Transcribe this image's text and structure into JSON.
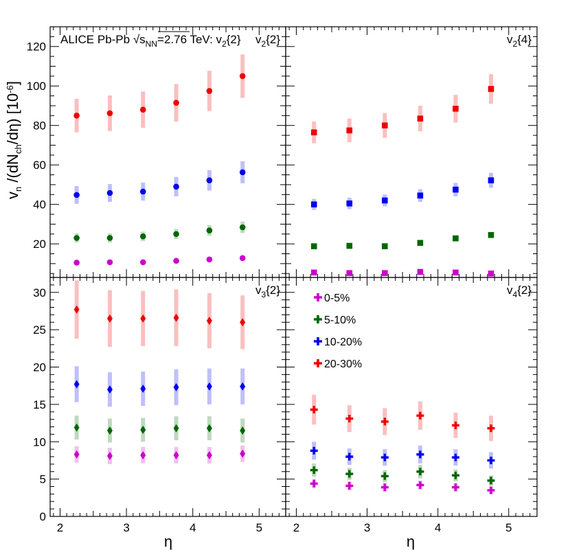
{
  "chart_data": {
    "type": "scatter",
    "title_prefix": "ALICE Pb-Pb",
    "title_sqrt": "s",
    "title_sub": "NN",
    "title_suffix": "=2.76 TeV: v",
    "title_v_sub": "2",
    "title_v_tail": "{2}",
    "ylabel_parts": {
      "v": "v",
      "v_sub": "n",
      "mid": " /(dN",
      "ch_sub": "ch",
      "tail": "/dη) [10",
      "exp": "-6",
      "close": "]"
    },
    "xlabel": "η",
    "x": [
      2.25,
      2.75,
      3.25,
      3.75,
      4.25,
      4.75
    ],
    "x_ticks": [
      "2",
      "3",
      "4",
      "5"
    ],
    "xlim": [
      1.85,
      5.4
    ],
    "legend": {
      "placement": "top-left of bottom-right panel",
      "entries": [
        "0-5%",
        "5-10%",
        "10-20%",
        "20-30%"
      ],
      "colors": [
        "#cc00cc",
        "#006600",
        "#0000ee",
        "#ee0000"
      ]
    },
    "panels": [
      {
        "label_base": "v",
        "label_sub": "2",
        "label_tail": "{2}",
        "marker": "circle",
        "ylim": [
          3,
          130
        ],
        "y_ticks": [
          "20",
          "40",
          "60",
          "80",
          "100",
          "120"
        ],
        "series": [
          {
            "name": "20-30%",
            "color": "#ee0000",
            "values": [
              85,
              86.2,
              88,
              91.5,
              97.5,
              105
            ],
            "errors": [
              8.5,
              9,
              9.2,
              9.5,
              10.2,
              11
            ]
          },
          {
            "name": "10-20%",
            "color": "#0000ee",
            "values": [
              44.8,
              45.8,
              46.5,
              49,
              52.2,
              56.3
            ],
            "errors": [
              4.5,
              4.5,
              4.6,
              4.9,
              5.2,
              5.6
            ]
          },
          {
            "name": "5-10%",
            "color": "#006600",
            "values": [
              23,
              23,
              23.8,
              25,
              26.8,
              28.4
            ],
            "errors": [
              2.3,
              2.3,
              2.4,
              2.5,
              2.7,
              2.9
            ]
          },
          {
            "name": "0-5%",
            "color": "#cc00cc",
            "values": [
              10.5,
              10.7,
              10.7,
              11.4,
              12.1,
              12.8
            ],
            "errors": [
              1,
              1,
              1,
              1.1,
              1.2,
              1.3
            ]
          }
        ]
      },
      {
        "label_base": "v",
        "label_sub": "2",
        "label_tail": "{4}",
        "marker": "square",
        "ylim": [
          3,
          130
        ],
        "y_ticks": [],
        "series": [
          {
            "name": "20-30%",
            "color": "#ee0000",
            "values": [
              76.5,
              77.5,
              80,
              83.5,
              88.5,
              98.5
            ],
            "errors": [
              5.5,
              6,
              6.3,
              6.5,
              7,
              7.5
            ]
          },
          {
            "name": "10-20%",
            "color": "#0000ee",
            "values": [
              40,
              40.5,
              42,
              44.5,
              47.5,
              52.2
            ],
            "errors": [
              2.8,
              2.9,
              3,
              3.2,
              3.4,
              3.8
            ]
          },
          {
            "name": "5-10%",
            "color": "#006600",
            "values": [
              18.8,
              19,
              18.8,
              20.5,
              22.8,
              24.5
            ],
            "errors": [
              1,
              1,
              1,
              1.1,
              1.2,
              1.4
            ]
          },
          {
            "name": "0-5%",
            "color": "#cc00cc",
            "values": [
              5.5,
              5.2,
              5.2,
              5.8,
              5.5,
              5
            ],
            "errors": [
              0.8,
              0.8,
              0.8,
              0.8,
              0.8,
              0.8
            ]
          }
        ]
      },
      {
        "label_base": "v",
        "label_sub": "3",
        "label_tail": "{2}",
        "marker": "diamond",
        "ylim": [
          0,
          32
        ],
        "y_ticks": [
          "0",
          "5",
          "10",
          "15",
          "20",
          "25",
          "30"
        ],
        "series": [
          {
            "name": "20-30%",
            "color": "#ee0000",
            "values": [
              27.7,
              26.5,
              26.5,
              26.6,
              26.2,
              26
            ],
            "errors": [
              3.9,
              3.8,
              3.7,
              3.8,
              3.7,
              3.6
            ]
          },
          {
            "name": "10-20%",
            "color": "#0000ee",
            "values": [
              17.7,
              17,
              17.1,
              17.3,
              17.4,
              17.4
            ],
            "errors": [
              2.4,
              2.3,
              2.3,
              2.4,
              2.4,
              2.4
            ]
          },
          {
            "name": "5-10%",
            "color": "#006600",
            "values": [
              11.9,
              11.5,
              11.6,
              11.8,
              11.8,
              11.5
            ],
            "errors": [
              1.6,
              1.6,
              1.6,
              1.6,
              1.6,
              1.6
            ]
          },
          {
            "name": "0-5%",
            "color": "#cc00cc",
            "values": [
              8.3,
              8.1,
              8.2,
              8.2,
              8.2,
              8.4
            ],
            "errors": [
              1.1,
              1.1,
              1.1,
              1.1,
              1.1,
              1.1
            ]
          }
        ]
      },
      {
        "label_base": "v",
        "label_sub": "4",
        "label_tail": "{2}",
        "marker": "cross",
        "ylim": [
          0,
          32
        ],
        "y_ticks": [],
        "series": [
          {
            "name": "20-30%",
            "color": "#ee0000",
            "values": [
              14.3,
              13.1,
              12.7,
              13.5,
              12.2,
              11.8
            ],
            "errors": [
              2,
              1.8,
              1.8,
              1.9,
              1.7,
              1.7
            ]
          },
          {
            "name": "10-20%",
            "color": "#0000ee",
            "values": [
              8.8,
              8,
              7.9,
              8.3,
              7.9,
              7.5
            ],
            "errors": [
              1.2,
              1.1,
              1.1,
              1.2,
              1.1,
              1.1
            ]
          },
          {
            "name": "5-10%",
            "color": "#006600",
            "values": [
              6.2,
              5.7,
              5.4,
              6,
              5.5,
              4.8
            ],
            "errors": [
              0.9,
              0.8,
              0.8,
              0.9,
              0.8,
              0.7
            ]
          },
          {
            "name": "0-5%",
            "color": "#cc00cc",
            "values": [
              4.4,
              4.1,
              3.9,
              4.2,
              3.9,
              3.5
            ],
            "errors": [
              0.6,
              0.6,
              0.6,
              0.6,
              0.6,
              0.5
            ]
          }
        ]
      }
    ]
  }
}
